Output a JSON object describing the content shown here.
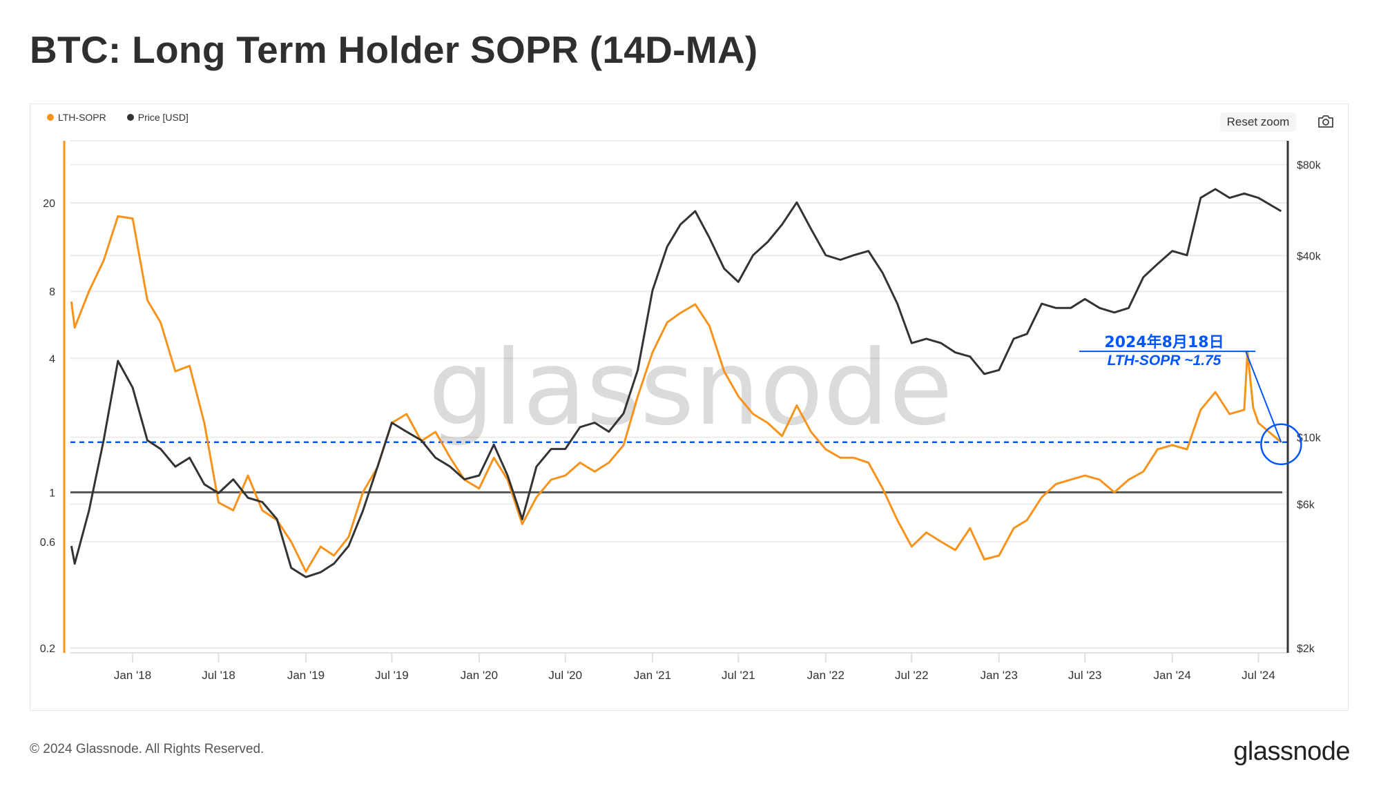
{
  "title": "BTC: Long Term Holder SOPR (14D-MA)",
  "toolbar": {
    "reset_zoom": "Reset zoom",
    "camera_icon": "camera-icon"
  },
  "footer": {
    "copyright": "© 2024 Glassnode. All Rights Reserved.",
    "logo": "glassnode"
  },
  "watermark": "glassnode",
  "colors": {
    "sopr": "#f7931a",
    "price": "#333333",
    "annotation": "#0055ff",
    "reference_line": "#555555"
  },
  "chart_data": {
    "type": "line",
    "title": "BTC: Long Term Holder SOPR (14D-MA)",
    "legend_position": "top-left",
    "grid": true,
    "x_range": [
      "2017-08-23",
      "2024-09-01"
    ],
    "x_ticks": [
      {
        "date": "2018-01-01",
        "label": "Jan '18"
      },
      {
        "date": "2018-07-01",
        "label": "Jul '18"
      },
      {
        "date": "2019-01-01",
        "label": "Jan '19"
      },
      {
        "date": "2019-07-01",
        "label": "Jul '19"
      },
      {
        "date": "2020-01-01",
        "label": "Jan '20"
      },
      {
        "date": "2020-07-01",
        "label": "Jul '20"
      },
      {
        "date": "2021-01-01",
        "label": "Jan '21"
      },
      {
        "date": "2021-07-01",
        "label": "Jul '21"
      },
      {
        "date": "2022-01-01",
        "label": "Jan '22"
      },
      {
        "date": "2022-07-01",
        "label": "Jul '22"
      },
      {
        "date": "2023-01-01",
        "label": "Jan '23"
      },
      {
        "date": "2023-07-01",
        "label": "Jul '23"
      },
      {
        "date": "2024-01-01",
        "label": "Jan '24"
      },
      {
        "date": "2024-07-01",
        "label": "Jul '24"
      }
    ],
    "left_axis": {
      "scale": "log",
      "range": [
        0.19,
        38
      ],
      "ticks": [
        {
          "v": 20,
          "label": "20"
        },
        {
          "v": 8,
          "label": "8"
        },
        {
          "v": 4,
          "label": "4"
        },
        {
          "v": 1,
          "label": "1"
        },
        {
          "v": 0.6,
          "label": "0.6"
        },
        {
          "v": 0.2,
          "label": "0.2"
        }
      ]
    },
    "right_axis": {
      "scale": "log",
      "range": [
        1930,
        96000
      ],
      "ticks": [
        {
          "v": 80000,
          "label": "$80k"
        },
        {
          "v": 40000,
          "label": "$40k"
        },
        {
          "v": 10000,
          "label": "$10k"
        },
        {
          "v": 6000,
          "label": "$6k"
        },
        {
          "v": 2000,
          "label": "$2k"
        }
      ]
    },
    "reference_line": {
      "axis": "left",
      "value": 1
    },
    "series": [
      {
        "name": "LTH-SOPR",
        "axis": "left",
        "x": [
          "2017-08-25",
          "2017-09-01",
          "2017-10-01",
          "2017-11-01",
          "2017-12-01",
          "2018-01-01",
          "2018-02-01",
          "2018-03-01",
          "2018-04-01",
          "2018-05-01",
          "2018-06-01",
          "2018-07-01",
          "2018-08-01",
          "2018-09-01",
          "2018-10-01",
          "2018-11-01",
          "2018-12-01",
          "2019-01-01",
          "2019-02-01",
          "2019-03-01",
          "2019-04-01",
          "2019-05-01",
          "2019-06-01",
          "2019-07-01",
          "2019-08-01",
          "2019-09-01",
          "2019-10-01",
          "2019-11-01",
          "2019-12-01",
          "2020-01-01",
          "2020-02-01",
          "2020-03-01",
          "2020-04-01",
          "2020-05-01",
          "2020-06-01",
          "2020-07-01",
          "2020-08-01",
          "2020-09-01",
          "2020-10-01",
          "2020-11-01",
          "2020-12-01",
          "2021-01-01",
          "2021-02-01",
          "2021-03-01",
          "2021-04-01",
          "2021-05-01",
          "2021-06-01",
          "2021-07-01",
          "2021-08-01",
          "2021-09-01",
          "2021-10-01",
          "2021-11-01",
          "2021-12-01",
          "2022-01-01",
          "2022-02-01",
          "2022-03-01",
          "2022-04-01",
          "2022-05-01",
          "2022-06-01",
          "2022-07-01",
          "2022-08-01",
          "2022-09-01",
          "2022-10-01",
          "2022-11-01",
          "2022-12-01",
          "2023-01-01",
          "2023-02-01",
          "2023-03-01",
          "2023-04-01",
          "2023-05-01",
          "2023-06-01",
          "2023-07-01",
          "2023-08-01",
          "2023-09-01",
          "2023-10-01",
          "2023-11-01",
          "2023-12-01",
          "2024-01-01",
          "2024-02-01",
          "2024-03-01",
          "2024-04-01",
          "2024-05-01",
          "2024-06-01",
          "2024-06-08",
          "2024-06-20",
          "2024-07-01",
          "2024-08-18"
        ],
        "values": [
          7.2,
          5.5,
          8.0,
          11.0,
          17.4,
          17.0,
          7.3,
          5.8,
          3.5,
          3.7,
          2.05,
          0.9,
          0.83,
          1.19,
          0.83,
          0.75,
          0.6,
          0.44,
          0.57,
          0.52,
          0.63,
          1.0,
          1.3,
          2.05,
          2.25,
          1.7,
          1.87,
          1.43,
          1.14,
          1.04,
          1.43,
          1.14,
          0.72,
          0.95,
          1.14,
          1.19,
          1.36,
          1.24,
          1.36,
          1.63,
          2.7,
          4.25,
          5.8,
          6.4,
          7.0,
          5.6,
          3.5,
          2.7,
          2.25,
          2.05,
          1.79,
          2.46,
          1.87,
          1.56,
          1.43,
          1.43,
          1.36,
          1.04,
          0.75,
          0.57,
          0.66,
          0.6,
          0.55,
          0.69,
          0.5,
          0.52,
          0.69,
          0.75,
          0.95,
          1.09,
          1.14,
          1.19,
          1.14,
          1.0,
          1.14,
          1.24,
          1.56,
          1.63,
          1.56,
          2.35,
          2.82,
          2.25,
          2.35,
          4.3,
          2.4,
          2.05,
          1.68
        ]
      },
      {
        "name": "Price [USD]",
        "axis": "right",
        "x": [
          "2017-08-25",
          "2017-09-01",
          "2017-10-01",
          "2017-11-01",
          "2017-12-01",
          "2018-01-01",
          "2018-02-01",
          "2018-03-01",
          "2018-04-01",
          "2018-05-01",
          "2018-06-01",
          "2018-07-01",
          "2018-08-01",
          "2018-09-01",
          "2018-10-01",
          "2018-11-01",
          "2018-12-01",
          "2019-01-01",
          "2019-02-01",
          "2019-03-01",
          "2019-04-01",
          "2019-05-01",
          "2019-06-01",
          "2019-07-01",
          "2019-08-01",
          "2019-09-01",
          "2019-10-01",
          "2019-11-01",
          "2019-12-01",
          "2020-01-01",
          "2020-02-01",
          "2020-03-01",
          "2020-04-01",
          "2020-05-01",
          "2020-06-01",
          "2020-07-01",
          "2020-08-01",
          "2020-09-01",
          "2020-10-01",
          "2020-11-01",
          "2020-12-01",
          "2021-01-01",
          "2021-02-01",
          "2021-03-01",
          "2021-04-01",
          "2021-05-01",
          "2021-06-01",
          "2021-07-01",
          "2021-08-01",
          "2021-09-01",
          "2021-10-01",
          "2021-11-01",
          "2021-12-01",
          "2022-01-01",
          "2022-02-01",
          "2022-03-01",
          "2022-04-01",
          "2022-05-01",
          "2022-06-01",
          "2022-07-01",
          "2022-08-01",
          "2022-09-01",
          "2022-10-01",
          "2022-11-01",
          "2022-12-01",
          "2023-01-01",
          "2023-02-01",
          "2023-03-01",
          "2023-04-01",
          "2023-05-01",
          "2023-06-01",
          "2023-07-01",
          "2023-08-01",
          "2023-09-01",
          "2023-10-01",
          "2023-11-01",
          "2023-12-01",
          "2024-01-01",
          "2024-02-01",
          "2024-03-01",
          "2024-04-01",
          "2024-05-01",
          "2024-06-01",
          "2024-07-01",
          "2024-08-18"
        ],
        "values": [
          4360,
          3810,
          5700,
          9770,
          17900,
          14600,
          9770,
          9140,
          7990,
          8550,
          6980,
          6530,
          7250,
          6300,
          6100,
          5350,
          3690,
          3440,
          3570,
          3810,
          4360,
          5700,
          7990,
          11170,
          10430,
          9770,
          8550,
          7990,
          7250,
          7470,
          9450,
          7470,
          5350,
          7990,
          9140,
          9140,
          10800,
          11170,
          10430,
          12000,
          16700,
          30600,
          42800,
          50700,
          56100,
          45800,
          36200,
          32700,
          40100,
          44400,
          50700,
          60000,
          49000,
          40100,
          38700,
          40100,
          41400,
          35000,
          27700,
          20500,
          21200,
          20500,
          19100,
          18500,
          16200,
          16700,
          21200,
          22000,
          27700,
          26800,
          26800,
          28700,
          26800,
          25900,
          26800,
          33900,
          37500,
          41400,
          40100,
          62100,
          66400,
          62100,
          64200,
          62100,
          56100
        ]
      }
    ],
    "annotation": {
      "date_label": "2024年8月18日",
      "value_label": "LTH-SOPR ~1.75",
      "date": "2024-08-18",
      "level": 1.68,
      "pointer_from": {
        "date": "2024-06-10",
        "value": 4.3
      }
    }
  }
}
